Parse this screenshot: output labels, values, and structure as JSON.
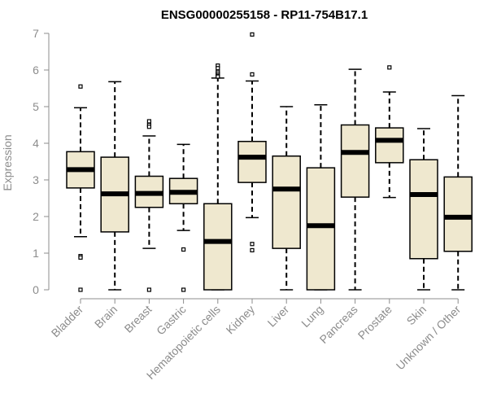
{
  "chart_data": {
    "type": "box",
    "title": "ENSG00000255158 - RP11-754B17.1",
    "xlabel": "",
    "ylabel": "Expression",
    "ylim": [
      0,
      7
    ],
    "yticks": [
      0,
      1,
      2,
      3,
      4,
      5,
      6,
      7
    ],
    "ytick_labels": [
      "0",
      "1",
      "2",
      "3",
      "4",
      "5",
      "6",
      "7"
    ],
    "categories": [
      "Bladder",
      "Brain",
      "Breast",
      "Gastric",
      "Hematopoietic cells",
      "Kidney",
      "Liver",
      "Lung",
      "Pancreas",
      "Prostate",
      "Skin",
      "Unknown / Other"
    ],
    "boxes": [
      {
        "category": "Bladder",
        "whisker_low": 1.45,
        "q1": 2.78,
        "median": 3.28,
        "q3": 3.77,
        "whisker_high": 4.97,
        "outliers": [
          5.55,
          0.92,
          0.88,
          0.0
        ]
      },
      {
        "category": "Brain",
        "whisker_low": 0.0,
        "q1": 1.58,
        "median": 2.62,
        "q3": 3.62,
        "whisker_high": 5.68,
        "outliers": []
      },
      {
        "category": "Breast",
        "whisker_low": 1.13,
        "q1": 2.25,
        "median": 2.63,
        "q3": 3.1,
        "whisker_high": 4.2,
        "outliers": [
          4.6,
          4.5,
          4.45,
          0.0
        ]
      },
      {
        "category": "Gastric",
        "whisker_low": 1.62,
        "q1": 2.35,
        "median": 2.66,
        "q3": 3.04,
        "whisker_high": 3.97,
        "outliers": [
          1.1,
          0.0
        ]
      },
      {
        "category": "Hematopoietic cells",
        "whisker_low": 0.0,
        "q1": 0.0,
        "median": 1.32,
        "q3": 2.35,
        "whisker_high": 5.78,
        "outliers": [
          6.12,
          6.05,
          5.95,
          5.9,
          5.85,
          5.82
        ]
      },
      {
        "category": "Kidney",
        "whisker_low": 1.97,
        "q1": 2.93,
        "median": 3.62,
        "q3": 4.05,
        "whisker_high": 5.7,
        "outliers": [
          6.97,
          5.88,
          1.25,
          1.08
        ]
      },
      {
        "category": "Liver",
        "whisker_low": 0.0,
        "q1": 1.13,
        "median": 2.75,
        "q3": 3.65,
        "whisker_high": 5.0,
        "outliers": []
      },
      {
        "category": "Lung",
        "whisker_low": 0.0,
        "q1": 0.0,
        "median": 1.75,
        "q3": 3.33,
        "whisker_high": 5.05,
        "outliers": []
      },
      {
        "category": "Pancreas",
        "whisker_low": 0.0,
        "q1": 2.53,
        "median": 3.75,
        "q3": 4.5,
        "whisker_high": 6.02,
        "outliers": []
      },
      {
        "category": "Prostate",
        "whisker_low": 2.52,
        "q1": 3.47,
        "median": 4.08,
        "q3": 4.42,
        "whisker_high": 5.4,
        "outliers": [
          6.07
        ]
      },
      {
        "category": "Skin",
        "whisker_low": 0.0,
        "q1": 0.85,
        "median": 2.6,
        "q3": 3.55,
        "whisker_high": 4.4,
        "outliers": []
      },
      {
        "category": "Unknown / Other",
        "whisker_low": 0.0,
        "q1": 1.05,
        "median": 1.98,
        "q3": 3.08,
        "whisker_high": 5.3,
        "outliers": []
      }
    ],
    "colors": {
      "box_fill": "#efe8cf",
      "box_stroke": "#000000",
      "median": "#000000",
      "axis": "#8c8c8c",
      "text": "#8c8c8c",
      "title": "#000000"
    },
    "grid": false,
    "legend": "none"
  }
}
